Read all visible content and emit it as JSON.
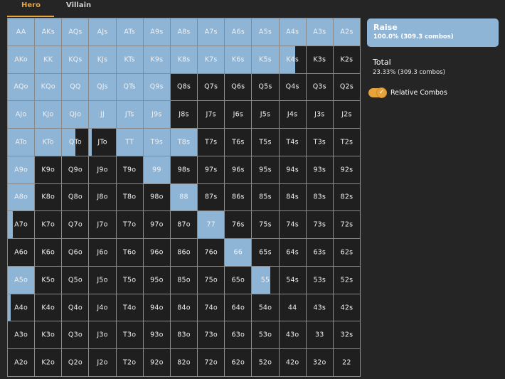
{
  "tabs": [
    {
      "label": "Hero",
      "active": true
    },
    {
      "label": "Villain",
      "active": false
    }
  ],
  "action": {
    "name": "Raise",
    "stats": "100.0% (309.3 combos)",
    "color": "#8fb5d6"
  },
  "total": {
    "title": "Total",
    "stats": "23.33% (309.3 combos)"
  },
  "toggle": {
    "label": "Relative Combos",
    "on": true,
    "icon": "check-icon"
  },
  "colors": {
    "raise": "#8fb5d6",
    "empty": "#1f1f1f",
    "accent": "#e8a33c"
  },
  "hands": [
    [
      {
        "h": "AA",
        "f": 1
      },
      {
        "h": "AKs",
        "f": 1
      },
      {
        "h": "AQs",
        "f": 1
      },
      {
        "h": "AJs",
        "f": 1
      },
      {
        "h": "ATs",
        "f": 1
      },
      {
        "h": "A9s",
        "f": 1
      },
      {
        "h": "A8s",
        "f": 1
      },
      {
        "h": "A7s",
        "f": 1
      },
      {
        "h": "A6s",
        "f": 1
      },
      {
        "h": "A5s",
        "f": 1
      },
      {
        "h": "A4s",
        "f": 1
      },
      {
        "h": "A3s",
        "f": 1
      },
      {
        "h": "A2s",
        "f": 1
      }
    ],
    [
      {
        "h": "AKo",
        "f": 1
      },
      {
        "h": "KK",
        "f": 1
      },
      {
        "h": "KQs",
        "f": 1
      },
      {
        "h": "KJs",
        "f": 1
      },
      {
        "h": "KTs",
        "f": 1
      },
      {
        "h": "K9s",
        "f": 1
      },
      {
        "h": "K8s",
        "f": 1
      },
      {
        "h": "K7s",
        "f": 1
      },
      {
        "h": "K6s",
        "f": 1
      },
      {
        "h": "K5s",
        "f": 1
      },
      {
        "h": "K4s",
        "f": 0.6
      },
      {
        "h": "K3s",
        "f": 0
      },
      {
        "h": "K2s",
        "f": 0
      }
    ],
    [
      {
        "h": "AQo",
        "f": 1
      },
      {
        "h": "KQo",
        "f": 1
      },
      {
        "h": "QQ",
        "f": 1
      },
      {
        "h": "QJs",
        "f": 1
      },
      {
        "h": "QTs",
        "f": 1
      },
      {
        "h": "Q9s",
        "f": 1
      },
      {
        "h": "Q8s",
        "f": 0
      },
      {
        "h": "Q7s",
        "f": 0
      },
      {
        "h": "Q6s",
        "f": 0
      },
      {
        "h": "Q5s",
        "f": 0
      },
      {
        "h": "Q4s",
        "f": 0
      },
      {
        "h": "Q3s",
        "f": 0
      },
      {
        "h": "Q2s",
        "f": 0
      }
    ],
    [
      {
        "h": "AJo",
        "f": 1
      },
      {
        "h": "KJo",
        "f": 1
      },
      {
        "h": "QJo",
        "f": 1
      },
      {
        "h": "JJ",
        "f": 1
      },
      {
        "h": "JTs",
        "f": 1
      },
      {
        "h": "J9s",
        "f": 1
      },
      {
        "h": "J8s",
        "f": 0
      },
      {
        "h": "J7s",
        "f": 0
      },
      {
        "h": "J6s",
        "f": 0
      },
      {
        "h": "J5s",
        "f": 0
      },
      {
        "h": "J4s",
        "f": 0
      },
      {
        "h": "J3s",
        "f": 0
      },
      {
        "h": "J2s",
        "f": 0
      }
    ],
    [
      {
        "h": "ATo",
        "f": 1
      },
      {
        "h": "KTo",
        "f": 1
      },
      {
        "h": "QTo",
        "f": 0.5
      },
      {
        "h": "JTo",
        "f": 0.1
      },
      {
        "h": "TT",
        "f": 1
      },
      {
        "h": "T9s",
        "f": 1
      },
      {
        "h": "T8s",
        "f": 1
      },
      {
        "h": "T7s",
        "f": 0
      },
      {
        "h": "T6s",
        "f": 0
      },
      {
        "h": "T5s",
        "f": 0
      },
      {
        "h": "T4s",
        "f": 0
      },
      {
        "h": "T3s",
        "f": 0
      },
      {
        "h": "T2s",
        "f": 0
      }
    ],
    [
      {
        "h": "A9o",
        "f": 1
      },
      {
        "h": "K9o",
        "f": 0
      },
      {
        "h": "Q9o",
        "f": 0
      },
      {
        "h": "J9o",
        "f": 0
      },
      {
        "h": "T9o",
        "f": 0
      },
      {
        "h": "99",
        "f": 1
      },
      {
        "h": "98s",
        "f": 0
      },
      {
        "h": "97s",
        "f": 0
      },
      {
        "h": "96s",
        "f": 0
      },
      {
        "h": "95s",
        "f": 0
      },
      {
        "h": "94s",
        "f": 0
      },
      {
        "h": "93s",
        "f": 0
      },
      {
        "h": "92s",
        "f": 0
      }
    ],
    [
      {
        "h": "A8o",
        "f": 1
      },
      {
        "h": "K8o",
        "f": 0
      },
      {
        "h": "Q8o",
        "f": 0
      },
      {
        "h": "J8o",
        "f": 0
      },
      {
        "h": "T8o",
        "f": 0
      },
      {
        "h": "98o",
        "f": 0
      },
      {
        "h": "88",
        "f": 1
      },
      {
        "h": "87s",
        "f": 0
      },
      {
        "h": "86s",
        "f": 0
      },
      {
        "h": "85s",
        "f": 0
      },
      {
        "h": "84s",
        "f": 0
      },
      {
        "h": "83s",
        "f": 0
      },
      {
        "h": "82s",
        "f": 0
      }
    ],
    [
      {
        "h": "A7o",
        "f": 0.2
      },
      {
        "h": "K7o",
        "f": 0
      },
      {
        "h": "Q7o",
        "f": 0
      },
      {
        "h": "J7o",
        "f": 0
      },
      {
        "h": "T7o",
        "f": 0
      },
      {
        "h": "97o",
        "f": 0
      },
      {
        "h": "87o",
        "f": 0
      },
      {
        "h": "77",
        "f": 1
      },
      {
        "h": "76s",
        "f": 0
      },
      {
        "h": "75s",
        "f": 0
      },
      {
        "h": "74s",
        "f": 0
      },
      {
        "h": "73s",
        "f": 0
      },
      {
        "h": "72s",
        "f": 0
      }
    ],
    [
      {
        "h": "A6o",
        "f": 0
      },
      {
        "h": "K6o",
        "f": 0
      },
      {
        "h": "Q6o",
        "f": 0
      },
      {
        "h": "J6o",
        "f": 0
      },
      {
        "h": "T6o",
        "f": 0
      },
      {
        "h": "96o",
        "f": 0
      },
      {
        "h": "86o",
        "f": 0
      },
      {
        "h": "76o",
        "f": 0
      },
      {
        "h": "66",
        "f": 1
      },
      {
        "h": "65s",
        "f": 0
      },
      {
        "h": "64s",
        "f": 0
      },
      {
        "h": "63s",
        "f": 0
      },
      {
        "h": "62s",
        "f": 0
      }
    ],
    [
      {
        "h": "A5o",
        "f": 1
      },
      {
        "h": "K5o",
        "f": 0
      },
      {
        "h": "Q5o",
        "f": 0
      },
      {
        "h": "J5o",
        "f": 0
      },
      {
        "h": "T5o",
        "f": 0
      },
      {
        "h": "95o",
        "f": 0
      },
      {
        "h": "85o",
        "f": 0
      },
      {
        "h": "75o",
        "f": 0
      },
      {
        "h": "65o",
        "f": 0
      },
      {
        "h": "55",
        "f": 0.7
      },
      {
        "h": "54s",
        "f": 0
      },
      {
        "h": "53s",
        "f": 0
      },
      {
        "h": "52s",
        "f": 0
      }
    ],
    [
      {
        "h": "A4o",
        "f": 0.1
      },
      {
        "h": "K4o",
        "f": 0
      },
      {
        "h": "Q4o",
        "f": 0
      },
      {
        "h": "J4o",
        "f": 0
      },
      {
        "h": "T4o",
        "f": 0
      },
      {
        "h": "94o",
        "f": 0
      },
      {
        "h": "84o",
        "f": 0
      },
      {
        "h": "74o",
        "f": 0
      },
      {
        "h": "64o",
        "f": 0
      },
      {
        "h": "54o",
        "f": 0
      },
      {
        "h": "44",
        "f": 0
      },
      {
        "h": "43s",
        "f": 0
      },
      {
        "h": "42s",
        "f": 0
      }
    ],
    [
      {
        "h": "A3o",
        "f": 0
      },
      {
        "h": "K3o",
        "f": 0
      },
      {
        "h": "Q3o",
        "f": 0
      },
      {
        "h": "J3o",
        "f": 0
      },
      {
        "h": "T3o",
        "f": 0
      },
      {
        "h": "93o",
        "f": 0
      },
      {
        "h": "83o",
        "f": 0
      },
      {
        "h": "73o",
        "f": 0
      },
      {
        "h": "63o",
        "f": 0
      },
      {
        "h": "53o",
        "f": 0
      },
      {
        "h": "43o",
        "f": 0
      },
      {
        "h": "33",
        "f": 0
      },
      {
        "h": "32s",
        "f": 0
      }
    ],
    [
      {
        "h": "A2o",
        "f": 0
      },
      {
        "h": "K2o",
        "f": 0
      },
      {
        "h": "Q2o",
        "f": 0
      },
      {
        "h": "J2o",
        "f": 0
      },
      {
        "h": "T2o",
        "f": 0
      },
      {
        "h": "92o",
        "f": 0
      },
      {
        "h": "82o",
        "f": 0
      },
      {
        "h": "72o",
        "f": 0
      },
      {
        "h": "62o",
        "f": 0
      },
      {
        "h": "52o",
        "f": 0
      },
      {
        "h": "42o",
        "f": 0
      },
      {
        "h": "32o",
        "f": 0
      },
      {
        "h": "22",
        "f": 0
      }
    ]
  ]
}
